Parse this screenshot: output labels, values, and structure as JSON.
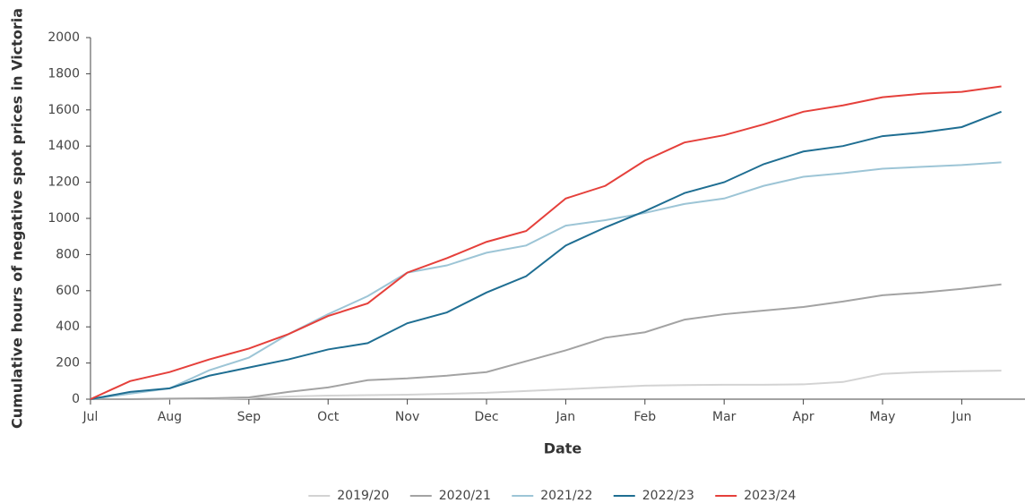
{
  "chart_data": {
    "type": "line",
    "x_label": "Date",
    "y_label": "Cumulative hours of negative spot prices in Victoria",
    "categories": [
      "Jul",
      null,
      "Aug",
      null,
      "Sep",
      null,
      "Oct",
      null,
      "Nov",
      null,
      "Dec",
      null,
      "Jan",
      null,
      "Feb",
      null,
      "Mar",
      null,
      "Apr",
      null,
      "May",
      null,
      "Jun",
      null
    ],
    "ylim": [
      0,
      2000
    ],
    "yticks": [
      0,
      200,
      400,
      600,
      800,
      1000,
      1200,
      1400,
      1600,
      1800,
      2000
    ],
    "legend": "bottom",
    "series": [
      {
        "name": "2019/20",
        "color": "#d3d3d3",
        "values": [
          0,
          0,
          2,
          3,
          5,
          15,
          20,
          22,
          25,
          30,
          35,
          45,
          55,
          65,
          75,
          78,
          80,
          80,
          82,
          95,
          140,
          150,
          155,
          158
        ]
      },
      {
        "name": "2020/21",
        "color": "#a3a3a3",
        "values": [
          0,
          0,
          3,
          5,
          10,
          40,
          65,
          105,
          115,
          130,
          150,
          210,
          270,
          340,
          370,
          440,
          470,
          490,
          510,
          540,
          575,
          590,
          610,
          635
        ]
      },
      {
        "name": "2021/22",
        "color": "#9dc5d6",
        "values": [
          0,
          30,
          60,
          160,
          230,
          360,
          470,
          570,
          700,
          740,
          810,
          850,
          960,
          990,
          1030,
          1080,
          1110,
          1180,
          1230,
          1250,
          1275,
          1285,
          1295,
          1310
        ]
      },
      {
        "name": "2022/23",
        "color": "#1f6e92",
        "values": [
          0,
          40,
          60,
          130,
          175,
          220,
          275,
          310,
          420,
          480,
          590,
          680,
          850,
          950,
          1040,
          1140,
          1200,
          1300,
          1370,
          1400,
          1455,
          1475,
          1505,
          1590
        ]
      },
      {
        "name": "2023/24",
        "color": "#e5403b",
        "values": [
          0,
          100,
          150,
          220,
          280,
          360,
          460,
          530,
          700,
          780,
          870,
          930,
          1110,
          1180,
          1320,
          1420,
          1460,
          1520,
          1590,
          1625,
          1670,
          1690,
          1700,
          1730
        ]
      }
    ]
  }
}
